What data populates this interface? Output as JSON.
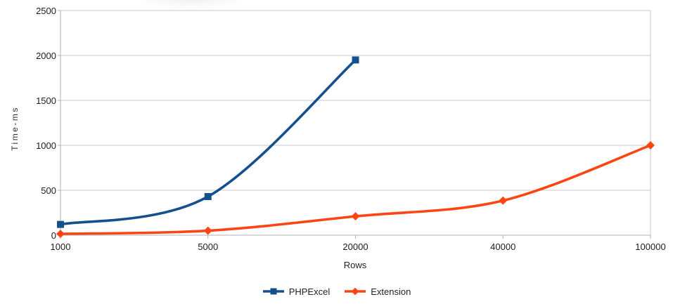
{
  "chart_data": {
    "type": "line",
    "title": "",
    "xlabel": "Rows",
    "ylabel": "Time-ms",
    "categories": [
      "1000",
      "5000",
      "20000",
      "40000",
      "100000"
    ],
    "y_ticks": [
      0,
      500,
      1000,
      1500,
      2000,
      2500
    ],
    "ylim": [
      0,
      2500
    ],
    "grid": "horizontal-only",
    "legend_position": "bottom-center",
    "series": [
      {
        "name": "PHPExcel",
        "color": "#14518c",
        "marker": "square",
        "values": [
          120,
          430,
          1950,
          null,
          null
        ]
      },
      {
        "name": "Extension",
        "color": "#fd4413",
        "marker": "diamond",
        "values": [
          15,
          50,
          210,
          385,
          1000
        ]
      }
    ]
  },
  "style": {
    "gridline_color": "#c9c9c9",
    "axis_color": "#b2b2b2",
    "tick_label_color": "#1c1c1c",
    "background": "#ffffff"
  }
}
